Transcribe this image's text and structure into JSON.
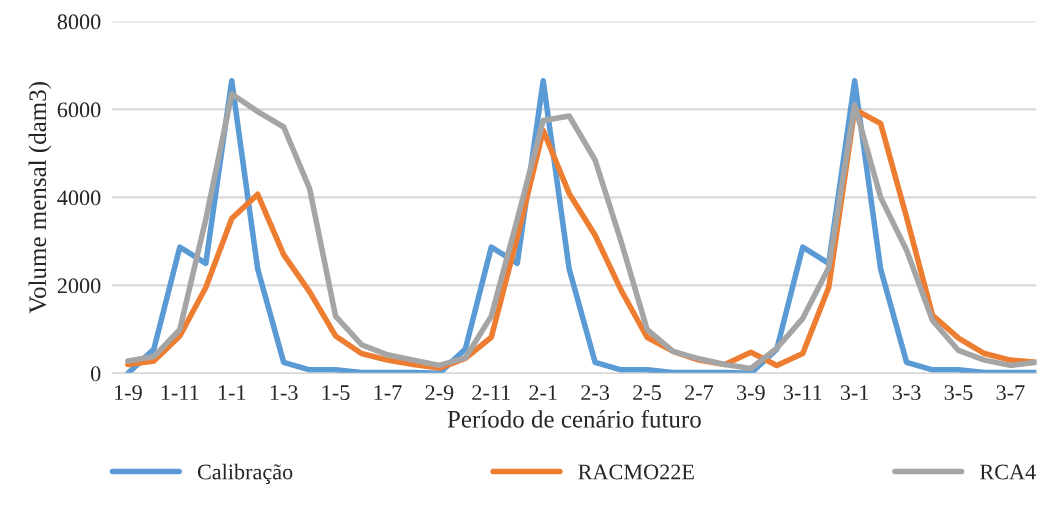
{
  "chart_data": {
    "type": "line",
    "xlabel": "Período de cenário futuro",
    "ylabel": "Volume mensal (dam3)",
    "categories": [
      "1-9",
      null,
      "1-11",
      null,
      "1-1",
      null,
      "1-3",
      null,
      "1-5",
      null,
      "1-7",
      null,
      "2-9",
      null,
      "2-11",
      null,
      "2-1",
      null,
      "2-3",
      null,
      "2-5",
      null,
      "2-7",
      null,
      "3-9",
      null,
      "3-11",
      null,
      "3-1",
      null,
      "3-3",
      null,
      "3-5",
      null,
      "3-7",
      null
    ],
    "series": [
      {
        "name": "Calibração",
        "color": "#5b9bd5",
        "values": [
          0,
          550,
          2870,
          2500,
          6650,
          2370,
          250,
          80,
          80,
          20,
          20,
          20,
          0,
          550,
          2870,
          2500,
          6650,
          2370,
          250,
          80,
          80,
          20,
          20,
          20,
          0,
          550,
          2870,
          2500,
          6650,
          2370,
          250,
          80,
          80,
          20,
          20,
          20
        ]
      },
      {
        "name": "RACMO22E",
        "color": "#ed7d31",
        "values": [
          200,
          280,
          850,
          1950,
          3520,
          4070,
          2700,
          1850,
          850,
          450,
          300,
          200,
          120,
          340,
          820,
          3090,
          5520,
          4090,
          3140,
          1890,
          820,
          500,
          300,
          200,
          480,
          180,
          450,
          1950,
          6000,
          5680,
          3550,
          1320,
          800,
          450,
          300,
          250
        ]
      },
      {
        "name": "RCA4",
        "color": "#a5a5a5",
        "values": [
          280,
          380,
          1000,
          3500,
          6350,
          5950,
          5600,
          4200,
          1300,
          650,
          420,
          300,
          180,
          350,
          1300,
          3500,
          5750,
          5850,
          4850,
          3000,
          1000,
          500,
          330,
          200,
          110,
          570,
          1250,
          2400,
          6100,
          4000,
          2800,
          1200,
          520,
          300,
          180,
          250
        ]
      }
    ],
    "ylim": [
      0,
      8000
    ],
    "yticks": [
      0,
      2000,
      4000,
      6000,
      8000
    ],
    "grid": "y",
    "legend": "bottom",
    "marker": "none",
    "line_style": "solid"
  }
}
